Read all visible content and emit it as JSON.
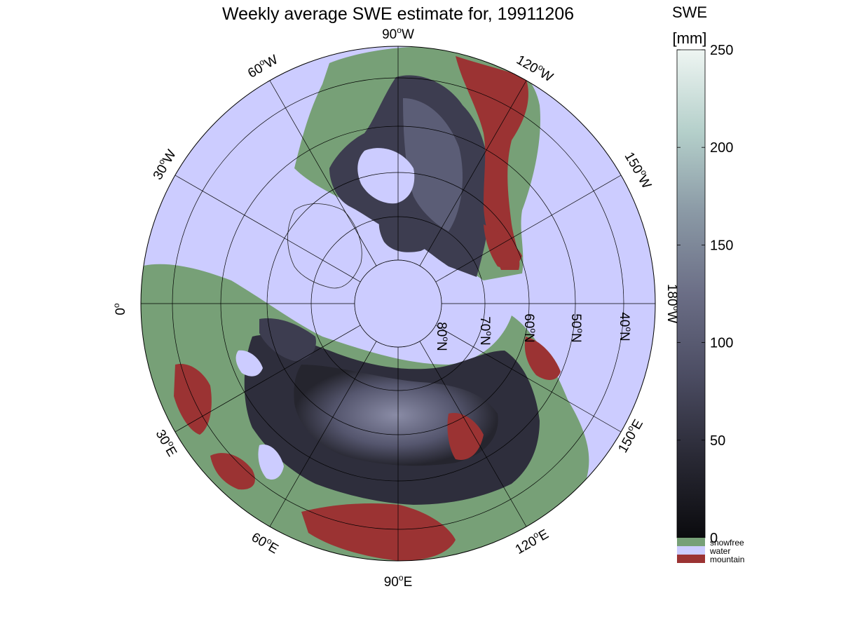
{
  "title": "Weekly average SWE estimate for, 19911206",
  "map": {
    "projection": "north polar stereographic",
    "colors": {
      "water": "#ccccff",
      "snowfree": "#77a077",
      "mountain": "#9b3333",
      "snow_low": "#111115",
      "snow_mid": "#44445e",
      "snow_high": "#8a8ca6",
      "graticule": "#000000"
    },
    "longitude_labels": [
      {
        "label": "90°W",
        "lon_text": "90",
        "suffix": "W",
        "lon": -90
      },
      {
        "label": "120°W",
        "lon_text": "120",
        "suffix": "W",
        "lon": -120
      },
      {
        "label": "150°W",
        "lon_text": "150",
        "suffix": "W",
        "lon": -150
      },
      {
        "label": "180°W",
        "lon_text": "180",
        "suffix": "W",
        "lon": 180
      },
      {
        "label": "150°E",
        "lon_text": "150",
        "suffix": "E",
        "lon": 150
      },
      {
        "label": "120°E",
        "lon_text": "120",
        "suffix": "E",
        "lon": 120
      },
      {
        "label": "90°E",
        "lon_text": "90",
        "suffix": "E",
        "lon": 90
      },
      {
        "label": "60°E",
        "lon_text": "60",
        "suffix": "E",
        "lon": 60
      },
      {
        "label": "30°E",
        "lon_text": "30",
        "suffix": "E",
        "lon": 30
      },
      {
        "label": "0°",
        "lon_text": "0",
        "suffix": "",
        "lon": 0
      },
      {
        "label": "30°W",
        "lon_text": "30",
        "suffix": "W",
        "lon": -30
      },
      {
        "label": "60°W",
        "lon_text": "60",
        "suffix": "W",
        "lon": -60
      }
    ],
    "latitude_labels": [
      {
        "label": "80°N",
        "lat_text": "80",
        "lat": 80
      },
      {
        "label": "70°N",
        "lat_text": "70",
        "lat": 70
      },
      {
        "label": "60°N",
        "lat_text": "60",
        "lat": 60
      },
      {
        "label": "50°N",
        "lat_text": "50",
        "lat": 50
      },
      {
        "label": "40°N",
        "lat_text": "40",
        "lat": 40
      }
    ],
    "min_latitude": 25
  },
  "colorbar": {
    "title": "SWE",
    "unit": "[mm]",
    "min": 0,
    "max": 250,
    "ticks": [
      0,
      50,
      100,
      150,
      200,
      250
    ],
    "gradient_stops": [
      "#0b0b0e",
      "#2a2a36",
      "#4b4c62",
      "#6b6e86",
      "#8b9aa6",
      "#b4cfca",
      "#eef5f2"
    ],
    "categories": [
      {
        "label": "snowfree",
        "color": "#77a077"
      },
      {
        "label": "water",
        "color": "#ccccff"
      },
      {
        "label": "mountain",
        "color": "#9b3333"
      }
    ]
  }
}
